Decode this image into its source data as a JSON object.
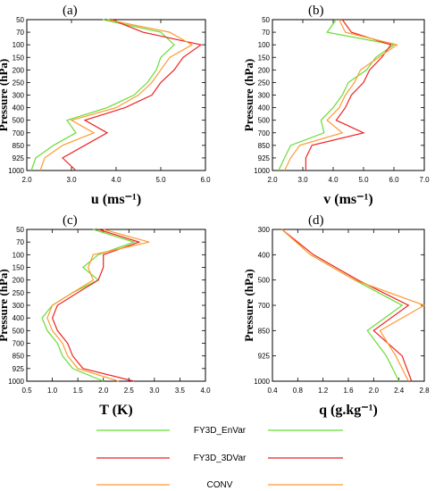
{
  "colors": {
    "FY3D_EnVar": "#66dd33",
    "FY3D_3DVar": "#ee2222",
    "CONV": "#ff9933"
  },
  "legend": [
    "FY3D_EnVar",
    "FY3D_3DVar",
    "CONV"
  ],
  "chart_data": [
    {
      "type": "line",
      "panel_label": "(a)",
      "xlabel": "u (ms⁻¹)",
      "ylabel": "Pressure (hPa)",
      "xlim": [
        2.0,
        6.0
      ],
      "xticks": [
        "2.0",
        "3.0",
        "4.0",
        "5.0",
        "6.0"
      ],
      "yticks": [
        "50",
        "70",
        "100",
        "150",
        "200",
        "250",
        "300",
        "400",
        "500",
        "700",
        "850",
        "925",
        "1000"
      ],
      "series": [
        {
          "name": "FY3D_EnVar",
          "y": [
            "50",
            "70",
            "100",
            "150",
            "200",
            "250",
            "300",
            "400",
            "500",
            "700",
            "850",
            "925",
            "1000"
          ],
          "x": [
            3.7,
            5.0,
            5.3,
            5.0,
            4.9,
            4.7,
            4.4,
            3.8,
            2.9,
            3.1,
            2.6,
            2.2,
            2.1
          ]
        },
        {
          "name": "FY3D_3DVar",
          "y": [
            "50",
            "70",
            "100",
            "150",
            "200",
            "250",
            "300",
            "400",
            "500",
            "700",
            "850",
            "925",
            "1000"
          ],
          "x": [
            3.9,
            4.6,
            5.9,
            5.5,
            5.3,
            5.0,
            4.8,
            4.2,
            3.3,
            3.8,
            3.3,
            2.8,
            3.1
          ]
        },
        {
          "name": "CONV",
          "y": [
            "50",
            "70",
            "100",
            "150",
            "200",
            "250",
            "300",
            "400",
            "500",
            "700",
            "850",
            "925",
            "1000"
          ],
          "x": [
            3.8,
            5.2,
            5.7,
            5.2,
            5.0,
            4.8,
            4.5,
            4.0,
            3.0,
            3.5,
            2.8,
            2.4,
            2.3
          ]
        }
      ]
    },
    {
      "type": "line",
      "panel_label": "(b)",
      "xlabel": "v (ms⁻¹)",
      "ylabel": "Pressure (hPa)",
      "xlim": [
        2.0,
        7.0
      ],
      "xticks": [
        "2.0",
        "3.0",
        "4.0",
        "5.0",
        "6.0",
        "7.0"
      ],
      "yticks": [
        "50",
        "70",
        "100",
        "150",
        "200",
        "250",
        "300",
        "400",
        "500",
        "700",
        "850",
        "925",
        "1000"
      ],
      "series": [
        {
          "name": "FY3D_EnVar",
          "y": [
            "50",
            "70",
            "100",
            "150",
            "200",
            "250",
            "300",
            "400",
            "500",
            "700",
            "850",
            "925",
            "1000"
          ],
          "x": [
            4.1,
            3.8,
            6.0,
            5.4,
            5.1,
            4.5,
            4.3,
            4.0,
            3.6,
            3.7,
            2.6,
            2.4,
            2.2
          ]
        },
        {
          "name": "FY3D_3DVar",
          "y": [
            "50",
            "70",
            "100",
            "150",
            "200",
            "250",
            "300",
            "400",
            "500",
            "700",
            "850",
            "925",
            "1000"
          ],
          "x": [
            4.3,
            4.6,
            5.9,
            5.6,
            5.2,
            5.0,
            4.6,
            4.4,
            4.1,
            5.0,
            3.3,
            3.1,
            3.1
          ]
        },
        {
          "name": "CONV",
          "y": [
            "50",
            "70",
            "100",
            "150",
            "200",
            "250",
            "300",
            "400",
            "500",
            "700",
            "850",
            "925",
            "1000"
          ],
          "x": [
            4.2,
            4.4,
            6.1,
            5.5,
            4.9,
            4.7,
            4.4,
            4.2,
            3.8,
            4.3,
            2.9,
            2.6,
            2.4
          ]
        }
      ]
    },
    {
      "type": "line",
      "panel_label": "(c)",
      "xlabel": "T (K)",
      "ylabel": "Pressure (hPa)",
      "xlim": [
        0.5,
        4.0
      ],
      "xticks": [
        "0.5",
        "1.0",
        "1.5",
        "2.0",
        "2.5",
        "3.0",
        "3.5",
        "4.0"
      ],
      "yticks": [
        "50",
        "70",
        "100",
        "150",
        "200",
        "250",
        "300",
        "400",
        "500",
        "700",
        "850",
        "925",
        "1000"
      ],
      "series": [
        {
          "name": "FY3D_EnVar",
          "y": [
            "50",
            "70",
            "100",
            "150",
            "200",
            "250",
            "300",
            "400",
            "500",
            "700",
            "850",
            "925",
            "1000"
          ],
          "x": [
            1.8,
            2.6,
            1.9,
            1.6,
            1.9,
            1.4,
            1.0,
            0.8,
            0.9,
            1.1,
            1.2,
            1.4,
            2.0
          ]
        },
        {
          "name": "FY3D_3DVar",
          "y": [
            "50",
            "70",
            "100",
            "150",
            "200",
            "250",
            "300",
            "400",
            "500",
            "700",
            "850",
            "925",
            "1000"
          ],
          "x": [
            1.9,
            2.7,
            2.0,
            2.0,
            1.9,
            1.5,
            1.1,
            1.0,
            1.1,
            1.3,
            1.4,
            1.6,
            2.6
          ]
        },
        {
          "name": "CONV",
          "y": [
            "50",
            "70",
            "100",
            "150",
            "200",
            "250",
            "300",
            "400",
            "500",
            "700",
            "850",
            "925",
            "1000"
          ],
          "x": [
            2.0,
            2.9,
            1.8,
            1.7,
            1.8,
            1.4,
            1.0,
            0.9,
            1.0,
            1.2,
            1.3,
            1.5,
            2.3
          ]
        }
      ]
    },
    {
      "type": "line",
      "panel_label": "(d)",
      "xlabel": "q (g.kg⁻¹)",
      "ylabel": "Pressure (hPa)",
      "xlim": [
        0.4,
        2.8
      ],
      "xticks": [
        "0.4",
        "0.8",
        "1.2",
        "1.6",
        "2.0",
        "2.4",
        "2.8"
      ],
      "yticks": [
        "300",
        "400",
        "500",
        "700",
        "850",
        "925",
        "1000"
      ],
      "series": [
        {
          "name": "FY3D_EnVar",
          "y": [
            "300",
            "400",
            "500",
            "700",
            "850",
            "925",
            "1000"
          ],
          "x": [
            0.55,
            1.0,
            1.7,
            2.45,
            1.9,
            2.2,
            2.4
          ]
        },
        {
          "name": "FY3D_3DVar",
          "y": [
            "300",
            "400",
            "500",
            "700",
            "850",
            "925",
            "1000"
          ],
          "x": [
            0.55,
            1.05,
            1.75,
            2.55,
            2.0,
            2.45,
            2.6
          ]
        },
        {
          "name": "CONV",
          "y": [
            "300",
            "400",
            "500",
            "700",
            "850",
            "925",
            "1000"
          ],
          "x": [
            0.55,
            1.0,
            1.7,
            2.8,
            2.1,
            2.35,
            2.55
          ]
        }
      ]
    }
  ]
}
